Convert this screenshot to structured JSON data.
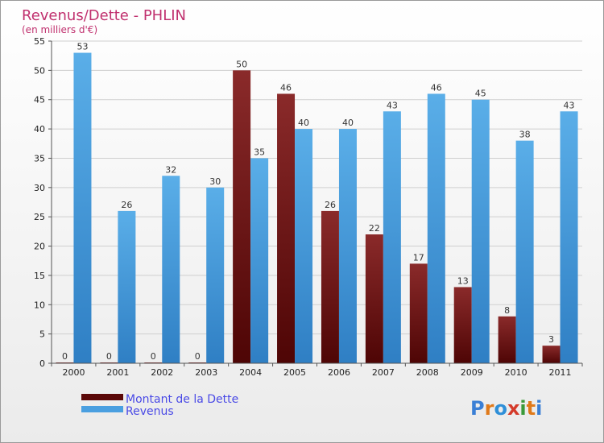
{
  "chart_data": {
    "type": "bar",
    "title": "Revenus/Dette - PHLIN",
    "subtitle": "(en milliers d'€)",
    "categories": [
      "2000",
      "2001",
      "2002",
      "2003",
      "2004",
      "2005",
      "2006",
      "2007",
      "2008",
      "2009",
      "2010",
      "2011"
    ],
    "series": [
      {
        "name": "Montant de la Dette",
        "color": "#6a0e0e",
        "values": [
          0,
          0,
          0,
          0,
          50,
          46,
          26,
          22,
          17,
          13,
          8,
          3
        ]
      },
      {
        "name": "Revenus",
        "color": "#4a9fe0",
        "values": [
          53,
          26,
          32,
          30,
          35,
          40,
          40,
          43,
          46,
          45,
          38,
          43
        ]
      }
    ],
    "ylim": [
      0,
      55
    ],
    "yticks": [
      0,
      5,
      10,
      15,
      20,
      25,
      30,
      35,
      40,
      45,
      50,
      55
    ],
    "grid": true,
    "legend_position": "bottom-left"
  },
  "brand": {
    "logo_text": "Proxiti",
    "colors": [
      "#3a7fd5",
      "#e07a1a",
      "#2f8fd8",
      "#d43a2a",
      "#3a9a3a",
      "#e07a1a",
      "#3a7fd5"
    ]
  },
  "title_color": "#c0306e"
}
